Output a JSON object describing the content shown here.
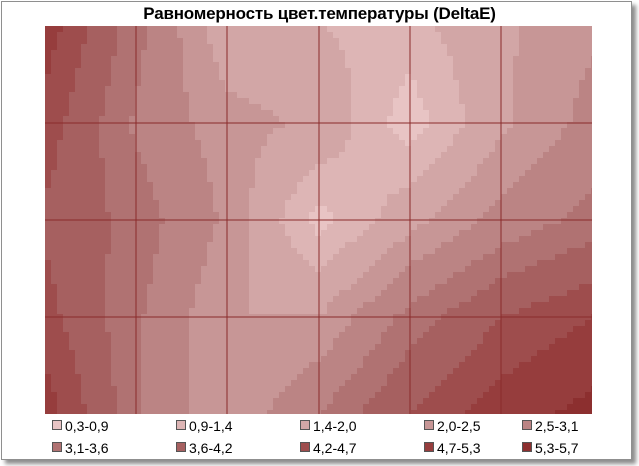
{
  "chart_data": {
    "type": "heatmap",
    "title": "Равномерность цвет.температуры (DeltaE)",
    "legend_position": "bottom",
    "grid": true,
    "ranges": [
      "0,3-0,9",
      "0,9-1,4",
      "1,4-2,0",
      "2,0-2,5",
      "2,5-3,1",
      "3,1-3,6",
      "3,6-4,2",
      "4,2-4,7",
      "4,7-5,3",
      "5,3-5,7"
    ],
    "range_colors": [
      "#e8c4c4",
      "#ddb5b5",
      "#d2a6a6",
      "#c79696",
      "#bb8484",
      "#b07272",
      "#a66060",
      "#9e4d4d",
      "#963d3d",
      "#8c2f2f"
    ],
    "columns": 7,
    "rows": 5,
    "values": [
      [
        5.0,
        3.3,
        1.6,
        1.4,
        1.2,
        1.9,
        2.4
      ],
      [
        4.5,
        3.0,
        2.2,
        1.9,
        0.6,
        1.9,
        2.7
      ],
      [
        4.1,
        3.4,
        2.4,
        0.7,
        1.8,
        2.7,
        3.3
      ],
      [
        4.4,
        3.2,
        2.0,
        2.0,
        3.3,
        4.2,
        4.7
      ],
      [
        5.0,
        3.2,
        2.0,
        3.1,
        4.2,
        5.0,
        5.5
      ]
    ]
  }
}
